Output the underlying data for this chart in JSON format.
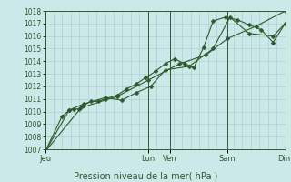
{
  "title": "",
  "xlabel": "Pression niveau de la mer( hPa )",
  "ylabel": "",
  "ylim": [
    1007,
    1018
  ],
  "yticks": [
    1007,
    1008,
    1009,
    1010,
    1011,
    1012,
    1013,
    1014,
    1015,
    1016,
    1017,
    1018
  ],
  "bg_color": "#cce8e8",
  "grid_color": "#aad0d0",
  "line_color": "#2d5a2d",
  "day_positions": [
    0.0,
    0.43,
    0.52,
    0.76,
    1.0
  ],
  "day_labels": [
    "Jeu",
    "Lun",
    "Ven",
    "Sam",
    "Dim"
  ],
  "series1_x": [
    0.0,
    0.07,
    0.1,
    0.12,
    0.14,
    0.16,
    0.19,
    0.22,
    0.25,
    0.3,
    0.34,
    0.38,
    0.42,
    0.46,
    0.5,
    0.54,
    0.58,
    0.62,
    0.66,
    0.7,
    0.75,
    0.8,
    0.85,
    0.9,
    0.95,
    1.0
  ],
  "series1_y": [
    1006.8,
    1009.6,
    1010.1,
    1010.2,
    1010.2,
    1010.5,
    1010.8,
    1010.8,
    1011.0,
    1011.3,
    1011.8,
    1012.2,
    1012.7,
    1013.2,
    1013.8,
    1014.2,
    1013.8,
    1013.5,
    1015.1,
    1017.2,
    1017.5,
    1017.3,
    1016.9,
    1016.5,
    1015.5,
    1017.0
  ],
  "series2_x": [
    0.0,
    0.1,
    0.16,
    0.25,
    0.32,
    0.38,
    0.44,
    0.5,
    0.6,
    0.7,
    0.77,
    0.85,
    0.95,
    1.0
  ],
  "series2_y": [
    1006.8,
    1010.1,
    1010.6,
    1011.1,
    1010.9,
    1011.5,
    1012.0,
    1013.3,
    1013.6,
    1015.0,
    1017.5,
    1016.2,
    1016.0,
    1017.0
  ],
  "series3_x": [
    0.0,
    0.15,
    0.3,
    0.43,
    0.56,
    0.67,
    0.76,
    0.88,
    1.0
  ],
  "series3_y": [
    1006.8,
    1010.3,
    1011.2,
    1012.5,
    1013.8,
    1014.5,
    1015.8,
    1016.8,
    1018.0
  ],
  "marker": "D",
  "markersize": 2.5,
  "linewidth": 0.8,
  "ytick_fontsize": 5.5,
  "xtick_fontsize": 6.0,
  "xlabel_fontsize": 7.0
}
